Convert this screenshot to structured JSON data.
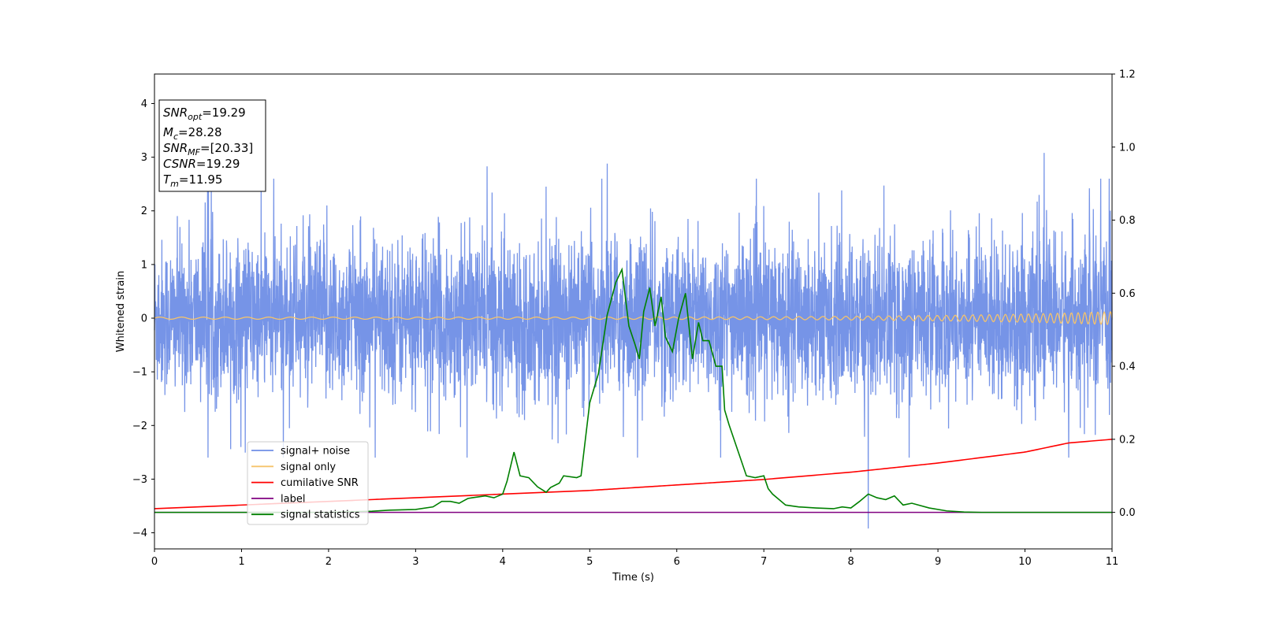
{
  "chart_data": {
    "type": "line",
    "xlabel": "Time (s)",
    "ylabel": "Whitened strain",
    "xlim": [
      0,
      11
    ],
    "ylim": [
      -4.3,
      4.55
    ],
    "y2lim": [
      -0.1,
      1.2
    ],
    "xticks": [
      "0",
      "1",
      "2",
      "3",
      "4",
      "5",
      "6",
      "7",
      "8",
      "9",
      "10",
      "11"
    ],
    "yticks": [
      "−4",
      "−3",
      "−2",
      "−1",
      "0",
      "1",
      "2",
      "3",
      "4"
    ],
    "y2ticks": [
      "0.0",
      "0.2",
      "0.4",
      "0.6",
      "0.8",
      "1.0",
      "1.2"
    ],
    "grid": false,
    "legend_position": "lower-left",
    "info_box": [
      {
        "key": "snr_opt",
        "name": "SNR",
        "sub": "opt",
        "value": "=19.29"
      },
      {
        "key": "mc",
        "name": "M",
        "sub": "c",
        "value": "=28.28"
      },
      {
        "key": "snr_mf",
        "name": "SNR",
        "sub": "MF",
        "value": "=[20.33]"
      },
      {
        "key": "csnr",
        "name": "CSNR",
        "sub": "",
        "value": "=19.29"
      },
      {
        "key": "tm",
        "name": "T",
        "sub": "m",
        "value": "=11.95"
      }
    ],
    "series": [
      {
        "name": "signal+ noise",
        "color": "#6f8ee6",
        "axis": "left",
        "description": "whitened noise, std ~0.8, spikes to ~±2.9",
        "peaks": [
          [
            0.61,
            2.4
          ],
          [
            1.98,
            2.1
          ],
          [
            3.82,
            2.83
          ],
          [
            5.2,
            2.88
          ],
          [
            8.2,
            -3.92
          ],
          [
            10.22,
            3.08
          ],
          [
            10.74,
            2.42
          ],
          [
            1.37,
            2.6
          ]
        ]
      },
      {
        "name": "signal only",
        "color": "#f5c36b",
        "axis": "left",
        "description": "chirp, amplitude growing from 0.02 to 0.12 toward t=11"
      },
      {
        "name": "cumilative SNR",
        "color": "#ff0000",
        "axis": "right",
        "x": [
          0,
          1,
          2,
          3,
          4,
          5,
          6,
          7,
          8,
          9,
          9.5,
          10,
          10.5,
          11
        ],
        "y": [
          0.01,
          0.02,
          0.03,
          0.04,
          0.05,
          0.06,
          0.075,
          0.09,
          0.11,
          0.135,
          0.15,
          0.165,
          0.19,
          0.2
        ]
      },
      {
        "name": "label",
        "color": "#800080",
        "axis": "right",
        "x": [
          0,
          11
        ],
        "y": [
          0.0,
          0.0
        ]
      },
      {
        "name": "signal statistics",
        "color": "#008000",
        "axis": "right",
        "x": [
          0,
          2.0,
          2.5,
          2.7,
          3.0,
          3.2,
          3.3,
          3.4,
          3.5,
          3.6,
          3.65,
          3.8,
          3.9,
          4.0,
          4.05,
          4.13,
          4.2,
          4.3,
          4.4,
          4.5,
          4.55,
          4.65,
          4.7,
          4.85,
          4.9,
          5.0,
          5.05,
          5.1,
          5.15,
          5.2,
          5.3,
          5.37,
          5.45,
          5.52,
          5.57,
          5.62,
          5.69,
          5.75,
          5.82,
          5.87,
          5.95,
          6.02,
          6.1,
          6.18,
          6.25,
          6.3,
          6.37,
          6.45,
          6.52,
          6.55,
          6.6,
          6.7,
          6.8,
          6.9,
          7.0,
          7.05,
          7.1,
          7.25,
          7.4,
          7.6,
          7.8,
          7.9,
          8.0,
          8.1,
          8.2,
          8.3,
          8.4,
          8.5,
          8.6,
          8.7,
          8.9,
          9.1,
          9.3,
          9.5,
          10,
          11
        ],
        "y": [
          0.0,
          0.0,
          0.003,
          0.006,
          0.008,
          0.015,
          0.03,
          0.03,
          0.025,
          0.038,
          0.04,
          0.045,
          0.04,
          0.05,
          0.085,
          0.165,
          0.1,
          0.095,
          0.07,
          0.055,
          0.068,
          0.08,
          0.1,
          0.095,
          0.1,
          0.3,
          0.34,
          0.38,
          0.46,
          0.54,
          0.63,
          0.665,
          0.51,
          0.46,
          0.42,
          0.55,
          0.615,
          0.51,
          0.59,
          0.48,
          0.44,
          0.53,
          0.6,
          0.42,
          0.52,
          0.47,
          0.47,
          0.4,
          0.4,
          0.28,
          0.24,
          0.17,
          0.1,
          0.095,
          0.1,
          0.065,
          0.05,
          0.02,
          0.015,
          0.012,
          0.01,
          0.015,
          0.012,
          0.03,
          0.05,
          0.04,
          0.035,
          0.045,
          0.02,
          0.025,
          0.012,
          0.004,
          0.001,
          0.0,
          0.0,
          0.0
        ]
      }
    ]
  }
}
